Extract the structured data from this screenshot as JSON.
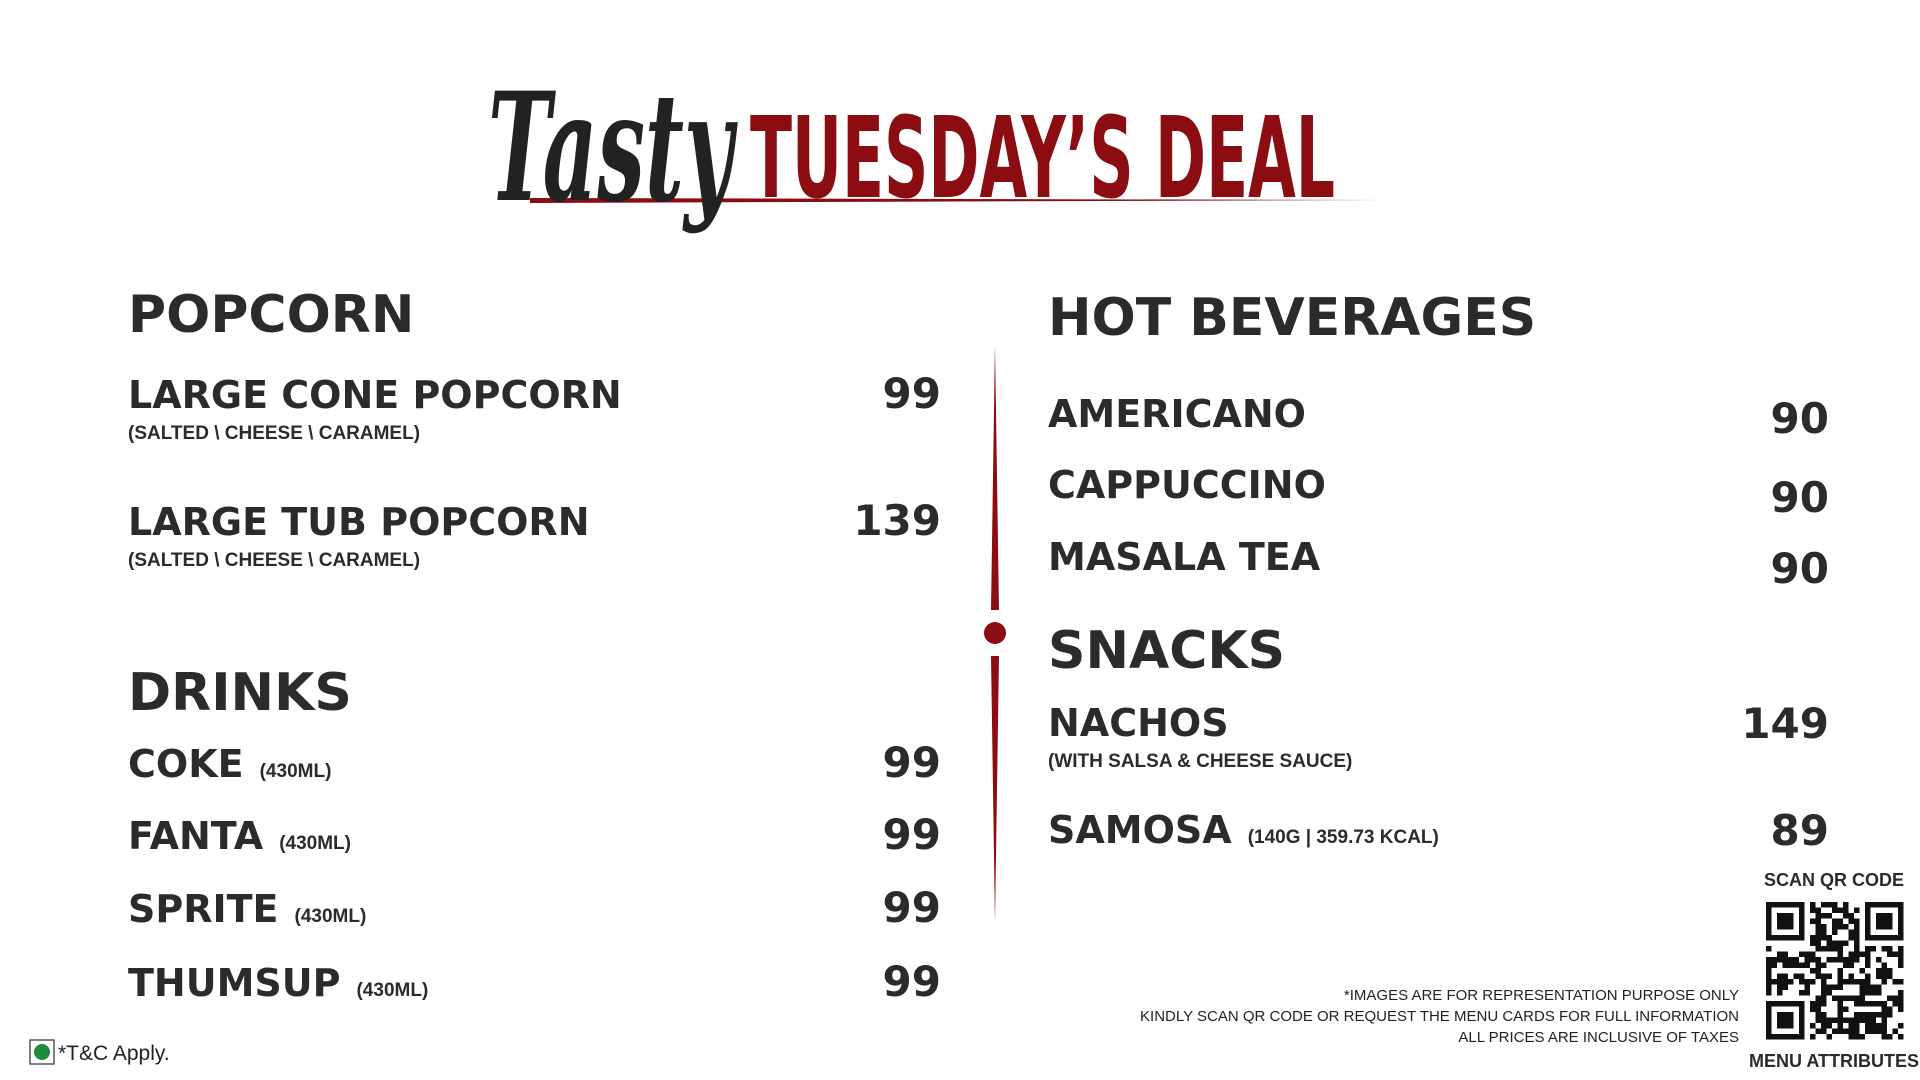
{
  "header": {
    "script": "Tasty",
    "title": "TUESDAY’S DEAL"
  },
  "left": [
    {
      "heading": "POPCORN",
      "items": [
        {
          "name": "LARGE CONE POPCORN",
          "note": "(SALTED \\ CHEESE \\ CARAMEL)",
          "price": "99"
        },
        {
          "name": "LARGE TUB POPCORN",
          "note": "(SALTED \\ CHEESE \\ CARAMEL)",
          "price": "139"
        }
      ]
    },
    {
      "heading": "DRINKS",
      "items": [
        {
          "name": "COKE",
          "note": "(430ML)",
          "price": "99"
        },
        {
          "name": "FANTA",
          "note": "(430ML)",
          "price": "99"
        },
        {
          "name": "SPRITE",
          "note": "(430ML)",
          "price": "99"
        },
        {
          "name": "THUMSUP",
          "note": "(430ML)",
          "price": "99"
        }
      ]
    }
  ],
  "right": [
    {
      "heading": "HOT BEVERAGES",
      "items": [
        {
          "name": "AMERICANO",
          "price": "90"
        },
        {
          "name": "CAPPUCCINO",
          "price": "90"
        },
        {
          "name": "MASALA TEA",
          "price": "90"
        }
      ]
    },
    {
      "heading": "SNACKS",
      "items": [
        {
          "name": "NACHOS",
          "note": "(WITH SALSA & CHEESE SAUCE)",
          "price": "149"
        },
        {
          "name": "SAMOSA",
          "note": "(140G | 359.73 KCAL)",
          "price": "89"
        }
      ]
    }
  ],
  "footer": {
    "notes": [
      "*IMAGES ARE FOR REPRESENTATION PURPOSE ONLY",
      "KINDLY SCAN QR CODE OR REQUEST THE MENU CARDS FOR FULL INFORMATION",
      "ALL PRICES ARE INCLUSIVE OF TAXES"
    ],
    "tc": "*T&C Apply."
  },
  "qr": {
    "top": "SCAN QR CODE",
    "bottom": "MENU ATTRIBUTES"
  }
}
